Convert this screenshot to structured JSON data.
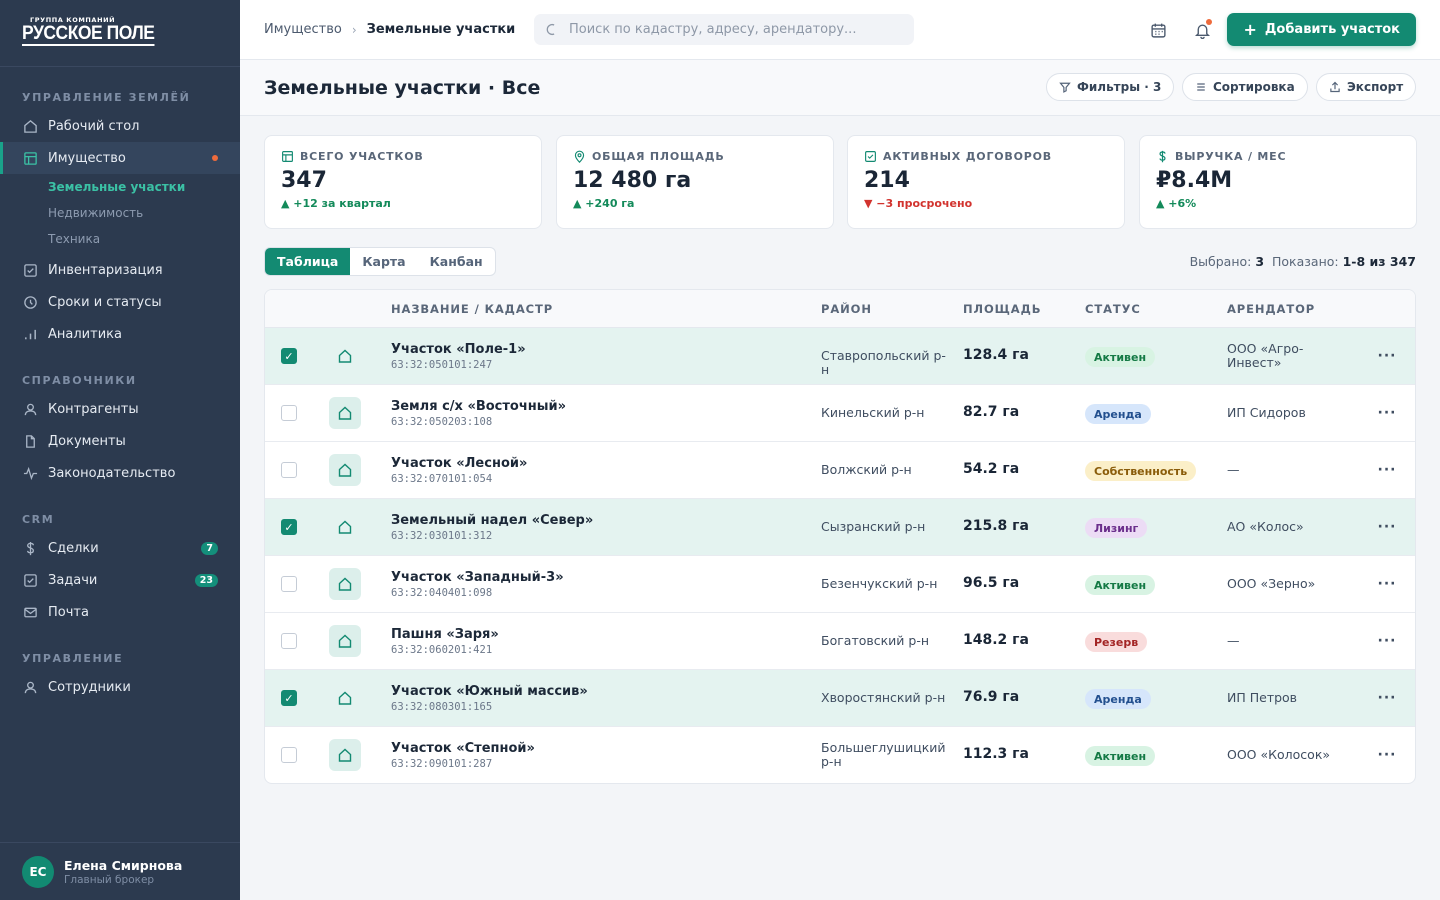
{
  "brand": {
    "small": "ГРУППА КОМПАНИЙ",
    "big": "РУССКОЕ ПОЛЕ"
  },
  "sidebar": {
    "sections": [
      "УПРАВЛЕНИЕ ЗЕМЛЁЙ",
      "СПРАВОЧНИКИ",
      "CRM",
      "УПРАВЛЕНИЕ"
    ],
    "items": [
      {
        "label": "Рабочий стол"
      },
      {
        "label": "Имущество"
      },
      {
        "label": "Инвентаризация"
      },
      {
        "label": "Сроки и статусы"
      },
      {
        "label": "Аналитика"
      },
      {
        "label": "Контрагенты"
      },
      {
        "label": "Документы"
      },
      {
        "label": "Законодательство"
      },
      {
        "label": "Сделки",
        "count": "7"
      },
      {
        "label": "Задачи",
        "count": "23"
      },
      {
        "label": "Почта"
      },
      {
        "label": "Сотрудники"
      }
    ],
    "subitems": [
      "Земельные участки",
      "Недвижимость",
      "Техника"
    ]
  },
  "user": {
    "initials": "ЕС",
    "name": "Елена Смирнова",
    "role": "Главный брокер"
  },
  "topbar": {
    "crumb_root": "Имущество",
    "crumb_current": "Земельные участки",
    "search_placeholder": "Поиск по кадастру, адресу, арендатору...",
    "add_label": "Добавить участок"
  },
  "page": {
    "title": "Земельные участки · Все",
    "filters": "Фильтры · 3",
    "sort": "Сортировка",
    "export": "Экспорт"
  },
  "stats": [
    {
      "label": "ВСЕГО УЧАСТКОВ",
      "value": "347",
      "delta": "▲ +12 за квартал"
    },
    {
      "label": "ОБЩАЯ ПЛОЩАДЬ",
      "value": "12 480 га",
      "delta": "▲ +240 га"
    },
    {
      "label": "АКТИВНЫХ ДОГОВОРОВ",
      "value": "214",
      "delta": "▼ −3 просрочено"
    },
    {
      "label": "ВЫРУЧКА / МЕС",
      "value": "₽8.4M",
      "delta": "▲ +6%"
    }
  ],
  "views": [
    "Таблица",
    "Карта",
    "Канбан"
  ],
  "selection": {
    "selected_label": "Выбрано:",
    "selected": "3",
    "shown_label": "Показано:",
    "shown": "1-8 из 347"
  },
  "columns": [
    "НАЗВАНИЕ / КАДАСТР",
    "РАЙОН",
    "ПЛОЩАДЬ",
    "СТАТУС",
    "АРЕНДАТОР"
  ],
  "status_colors": {
    "Активен": {
      "bg": "#d8f3e3",
      "fg": "#157a45"
    },
    "Аренда": {
      "bg": "#d6e6fb",
      "fg": "#23508f"
    },
    "Собственность": {
      "bg": "#fbefc8",
      "fg": "#8a5c0a"
    },
    "Лизинг": {
      "bg": "#ecdcf5",
      "fg": "#6b2f8c"
    },
    "Резерв": {
      "bg": "#f9dcdc",
      "fg": "#a32424"
    }
  },
  "rows": [
    {
      "selected": true,
      "name": "Участок «Поле-1»",
      "cadastre": "63:32:050101:247",
      "district": "Ставропольский р-н",
      "area": "128.4 га",
      "status": "Активен",
      "tenant": "ООО «Агро-Инвест»"
    },
    {
      "selected": false,
      "name": "Земля с/х «Восточный»",
      "cadastre": "63:32:050203:108",
      "district": "Кинельский р-н",
      "area": "82.7 га",
      "status": "Аренда",
      "tenant": "ИП Сидоров"
    },
    {
      "selected": false,
      "name": "Участок «Лесной»",
      "cadastre": "63:32:070101:054",
      "district": "Волжский р-н",
      "area": "54.2 га",
      "status": "Собственность",
      "tenant": "—"
    },
    {
      "selected": true,
      "name": "Земельный надел «Север»",
      "cadastre": "63:32:030101:312",
      "district": "Сызранский р-н",
      "area": "215.8 га",
      "status": "Лизинг",
      "tenant": "АО «Колос»"
    },
    {
      "selected": false,
      "name": "Участок «Западный-3»",
      "cadastre": "63:32:040401:098",
      "district": "Безенчукский р-н",
      "area": "96.5 га",
      "status": "Активен",
      "tenant": "ООО «Зерно»"
    },
    {
      "selected": false,
      "name": "Пашня «Заря»",
      "cadastre": "63:32:060201:421",
      "district": "Богатовский р-н",
      "area": "148.2 га",
      "status": "Резерв",
      "tenant": "—"
    },
    {
      "selected": true,
      "name": "Участок «Южный массив»",
      "cadastre": "63:32:080301:165",
      "district": "Хворостянский р-н",
      "area": "76.9 га",
      "status": "Аренда",
      "tenant": "ИП Петров"
    },
    {
      "selected": false,
      "name": "Участок «Степной»",
      "cadastre": "63:32:090101:287",
      "district": "Большеглушицкий р-н",
      "area": "112.3 га",
      "status": "Активен",
      "tenant": "ООО «Колосок»"
    }
  ]
}
